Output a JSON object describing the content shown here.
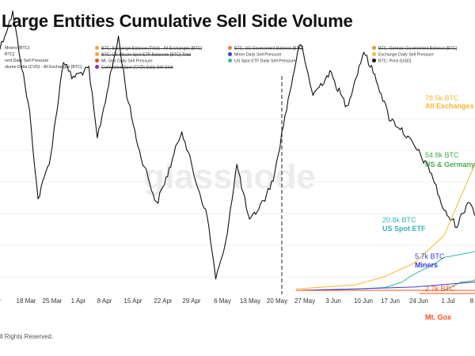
{
  "title": "Large Entities Cumulative Sell Side Volume",
  "watermark": "glassnode",
  "footer": "ll Rights Reserved.",
  "legend": [
    {
      "label": "Miners [BTC]",
      "color": "#ff8c1a",
      "struck": false
    },
    {
      "label": "BTC: Exchange Balance (Total) - All Exchanges [BTC]",
      "color": "#f4a340",
      "struck": true
    },
    {
      "label": "BTC: US Government Balance [BTC]",
      "color": "#e9804a",
      "struck": true
    },
    {
      "label": "BTC: German Government Balance [BTC]",
      "color": "#d99b3c",
      "struck": true
    },
    {
      "label": "BTC]",
      "color": "#ff8c1a",
      "struck": false
    },
    {
      "label": "BTC: US Bitcoin Spot ETF Balances [BTC] Total",
      "color": "#f4a340",
      "struck": true
    },
    {
      "label": "Miner Daily Sell Pressure",
      "color": "#3c3cd9",
      "struck": false
    },
    {
      "label": "Exchange Daily Sell Pressure",
      "color": "#f7b733",
      "struck": false
    },
    {
      "label": "rent Daily Sell Pressure",
      "color": "#ff8c1a",
      "struck": false
    },
    {
      "label": "Mt. Gox Daily Sell Pressure",
      "color": "#e8502a",
      "struck": false
    },
    {
      "label": "US Spot ETF Daily Sell Pressure",
      "color": "#35b5b5",
      "struck": false
    },
    {
      "label": "BTC: Price [USD]",
      "color": "#111111",
      "struck": false
    },
    {
      "label": "olume Delta (CVD) - All Exchanges [BTC]",
      "color": "#999999",
      "struck": false
    },
    {
      "label": "Cumulative Spot (CVD) Daily Sell Side",
      "color": "#8c2bbd",
      "struck": true
    }
  ],
  "colors": {
    "exchanges": "#f7b733",
    "us_germany": "#4caf50",
    "us_spot_etf": "#35b5b5",
    "miners": "#3c3cd9",
    "mt_gox": "#ff4d1a",
    "price": "#111111"
  },
  "chart_data": {
    "type": "line",
    "x_tick_labels": [
      "r",
      "18 Mar",
      "25 Mar",
      "1 Apr",
      "8 Apr",
      "15 Apr",
      "22 Apr",
      "29 Apr",
      "6 May",
      "13 May",
      "20 May",
      "27 May",
      "3 Jun",
      "10 Jun",
      "17 Jun",
      "24 Jun",
      "1 Jul",
      "8"
    ],
    "series": [
      {
        "name": "BTC: Price [USD]",
        "key": "price",
        "dates": [
          "2024-03-09",
          "2024-03-11",
          "2024-03-14",
          "2024-03-18",
          "2024-03-20",
          "2024-03-23",
          "2024-03-26",
          "2024-03-28",
          "2024-04-01",
          "2024-04-03",
          "2024-04-08",
          "2024-04-10",
          "2024-04-13",
          "2024-04-15",
          "2024-04-17",
          "2024-04-20",
          "2024-04-23",
          "2024-04-26",
          "2024-04-29",
          "2024-05-01",
          "2024-05-03",
          "2024-05-06",
          "2024-05-09",
          "2024-05-13",
          "2024-05-15",
          "2024-05-17",
          "2024-05-20",
          "2024-05-21",
          "2024-05-24",
          "2024-05-28",
          "2024-06-01",
          "2024-06-05",
          "2024-06-08",
          "2024-06-11",
          "2024-06-14",
          "2024-06-18",
          "2024-06-21",
          "2024-06-24",
          "2024-06-27",
          "2024-06-30",
          "2024-07-03",
          "2024-07-05",
          "2024-07-06",
          "2024-07-08",
          "2024-07-10"
        ],
        "values": [
          72.3,
          71.2,
          73.2,
          67.5,
          62.5,
          65.0,
          70.5,
          69.5,
          70.0,
          66.0,
          71.8,
          68.5,
          65.2,
          63.8,
          62.2,
          64.2,
          66.5,
          63.8,
          61.5,
          58.0,
          59.5,
          64.5,
          61.2,
          62.7,
          64.0,
          66.8,
          70.5,
          71.5,
          68.5,
          69.8,
          67.8,
          71.0,
          69.4,
          67.2,
          66.5,
          65.2,
          64.0,
          61.8,
          61.0,
          62.5,
          60.5,
          55.5,
          56.7,
          57.3,
          58.6
        ]
      },
      {
        "name": "All Exchanges",
        "key": "exchanges",
        "end_label": "78.5k BTC",
        "dates": [
          "2024-05-20",
          "2024-06-03",
          "2024-06-10",
          "2024-06-17",
          "2024-06-24",
          "2024-07-01",
          "2024-07-05",
          "2024-07-08",
          "2024-07-10"
        ],
        "values": [
          0.5,
          2,
          5,
          10,
          20,
          45,
          60,
          72,
          78.5
        ]
      },
      {
        "name": "US & Germany",
        "key": "us_germany",
        "end_label": "54.8k BTC",
        "dates": [
          "2024-05-20",
          "2024-06-10",
          "2024-06-17",
          "2024-06-24",
          "2024-06-28",
          "2024-07-01",
          "2024-07-05",
          "2024-07-08",
          "2024-07-10"
        ],
        "values": [
          0,
          0,
          0,
          0,
          3,
          3.5,
          10,
          25,
          54.8
        ]
      },
      {
        "name": "US Spot ETF",
        "key": "us_spot_etf",
        "end_label": "20.8k BTC",
        "dates": [
          "2024-05-20",
          "2024-06-03",
          "2024-06-10",
          "2024-06-14",
          "2024-06-17",
          "2024-06-21",
          "2024-06-24",
          "2024-07-01",
          "2024-07-05",
          "2024-07-10"
        ],
        "values": [
          0,
          0.5,
          1,
          3,
          6,
          9,
          12,
          14,
          17,
          20.8
        ]
      },
      {
        "name": "Miners",
        "key": "miners",
        "end_label": "5.7k BTC",
        "dates": [
          "2024-05-20",
          "2024-06-03",
          "2024-06-17",
          "2024-07-01",
          "2024-07-10"
        ],
        "values": [
          0,
          0.5,
          1.2,
          3,
          5.7
        ]
      },
      {
        "name": "Mt. Gox",
        "key": "mt_gox",
        "end_label": "2.7k BTC",
        "dates": [
          "2024-05-20",
          "2024-07-04",
          "2024-07-05",
          "2024-07-10"
        ],
        "values": [
          0,
          0,
          2.7,
          2.7
        ]
      }
    ]
  }
}
